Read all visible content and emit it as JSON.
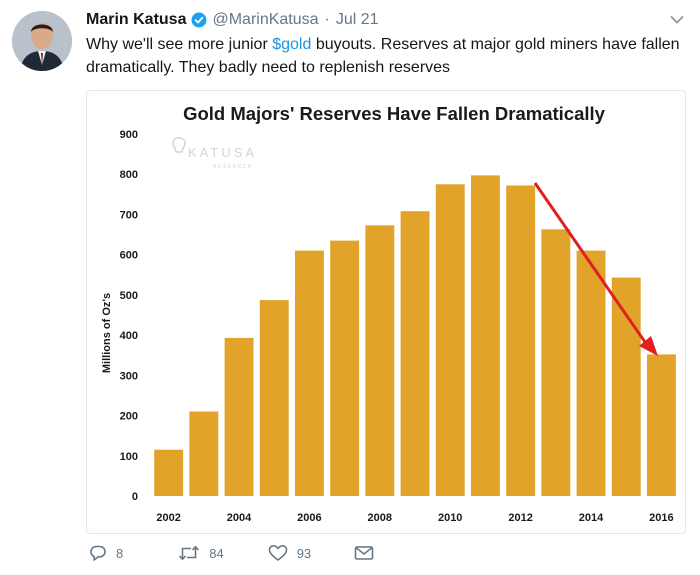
{
  "tweet": {
    "author_name": "Marin Katusa",
    "handle": "@MarinKatusa",
    "separator": "·",
    "date": "Jul 21",
    "text_before": "Why we'll see more junior ",
    "cashtag": "$gold",
    "text_after": " buyouts. Reserves at major gold miners have fallen dramatically. They badly need to replenish reserves"
  },
  "actions": {
    "replies": "8",
    "retweets": "84",
    "likes": "93"
  },
  "colors": {
    "bar": "#E2A32A",
    "arrow": "#E02020",
    "link": "#1B95E0",
    "muted": "#657786"
  },
  "icons": [
    "verified-badge-icon",
    "caret-down-icon",
    "reply-icon",
    "retweet-icon",
    "like-icon",
    "direct-message-icon"
  ],
  "watermark": {
    "brand": "KATUSA",
    "sub": "RESEARCH"
  },
  "chart_data": {
    "type": "bar",
    "title": "Gold Majors' Reserves Have Fallen Dramatically",
    "xlabel": "",
    "ylabel": "Millions of Oz's",
    "categories": [
      "2002",
      "2003",
      "2004",
      "2005",
      "2006",
      "2007",
      "2008",
      "2009",
      "2010",
      "2011",
      "2012",
      "2013",
      "2014",
      "2015",
      "2016"
    ],
    "x_tick_labels": [
      "2002",
      "2004",
      "2006",
      "2008",
      "2010",
      "2012",
      "2014",
      "2016"
    ],
    "values": [
      115,
      210,
      393,
      487,
      610,
      635,
      673,
      708,
      775,
      797,
      772,
      663,
      610,
      543,
      352
    ],
    "ylim": [
      0,
      900
    ],
    "yticks": [
      0,
      100,
      200,
      300,
      400,
      500,
      600,
      700,
      800,
      900
    ],
    "grid": false,
    "legend": "none",
    "annotation": "red downward trend arrow from 2012 to 2016"
  }
}
